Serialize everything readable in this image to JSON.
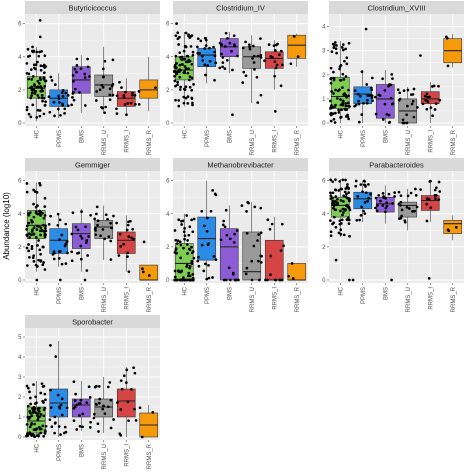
{
  "figure": {
    "ylabel": "Abundance (log10)",
    "groups": [
      "HC",
      "PPMS",
      "BMS",
      "RRMS_U",
      "RRMS_I",
      "RRMS_R"
    ],
    "colors": {
      "HC": "#7ccd52",
      "PPMS": "#2b8ce8",
      "BMS": "#8b5cd4",
      "RRMS_U": "#9a9a9a",
      "RRMS_I": "#d64545",
      "RRMS_R": "#f59a0a"
    },
    "panel_background": "#ebebeb",
    "strip_background": "#d9d9d9",
    "grid_color": "#ffffff"
  },
  "chart_data": [
    {
      "type": "box",
      "title": "Butyricicoccus",
      "ylim": [
        0,
        6.4
      ],
      "yticks": [
        0,
        2,
        4,
        6
      ],
      "categories": [
        "HC",
        "PPMS",
        "BMS",
        "RRMS_U",
        "RRMS_I",
        "RRMS_R"
      ],
      "boxes": [
        {
          "q1": 1.5,
          "median": 2.1,
          "q3": 2.8,
          "lower": 0.1,
          "upper": 4.6,
          "n": 85,
          "outliers": [
            6.2,
            5.2
          ]
        },
        {
          "q1": 1.0,
          "median": 1.5,
          "q3": 2.0,
          "lower": 0.3,
          "upper": 3.0,
          "n": 22,
          "outliers": []
        },
        {
          "q1": 1.8,
          "median": 2.6,
          "q3": 3.4,
          "lower": 0.6,
          "upper": 4.1,
          "n": 20,
          "outliers": []
        },
        {
          "q1": 1.6,
          "median": 2.3,
          "q3": 2.9,
          "lower": 0.6,
          "upper": 4.6,
          "n": 20,
          "outliers": []
        },
        {
          "q1": 1.0,
          "median": 1.5,
          "q3": 1.9,
          "lower": 0.4,
          "upper": 2.7,
          "n": 16,
          "outliers": []
        },
        {
          "q1": 1.5,
          "median": 2.0,
          "q3": 2.6,
          "lower": 0.7,
          "upper": 4.0,
          "n": 3,
          "outliers": []
        }
      ]
    },
    {
      "type": "box",
      "title": "Clostridium_IV",
      "ylim": [
        0,
        6.4
      ],
      "yticks": [
        0,
        2,
        4,
        6
      ],
      "categories": [
        "HC",
        "PPMS",
        "BMS",
        "RRMS_U",
        "RRMS_I",
        "RRMS_R"
      ],
      "boxes": [
        {
          "q1": 2.6,
          "median": 3.2,
          "q3": 4.0,
          "lower": 1.0,
          "upper": 5.5,
          "n": 85,
          "outliers": [
            6.0
          ]
        },
        {
          "q1": 3.4,
          "median": 4.1,
          "q3": 4.5,
          "lower": 2.4,
          "upper": 5.2,
          "n": 22,
          "outliers": []
        },
        {
          "q1": 4.0,
          "median": 4.6,
          "q3": 5.1,
          "lower": 3.0,
          "upper": 5.5,
          "n": 20,
          "outliers": [
            0.5
          ]
        },
        {
          "q1": 3.3,
          "median": 4.0,
          "q3": 4.6,
          "lower": 1.2,
          "upper": 5.3,
          "n": 20,
          "outliers": []
        },
        {
          "q1": 3.3,
          "median": 3.9,
          "q3": 4.3,
          "lower": 2.0,
          "upper": 5.0,
          "n": 16,
          "outliers": [
            0.7
          ]
        },
        {
          "q1": 3.9,
          "median": 4.7,
          "q3": 5.3,
          "lower": 3.4,
          "upper": 5.4,
          "n": 3,
          "outliers": []
        }
      ]
    },
    {
      "type": "box",
      "title": "Clostridium_XVIII",
      "ylim": [
        0,
        4.4
      ],
      "yticks": [
        0,
        1,
        2,
        3,
        4
      ],
      "categories": [
        "HC",
        "PPMS",
        "BMS",
        "RRMS_U",
        "RRMS_I",
        "RRMS_R"
      ],
      "boxes": [
        {
          "q1": 0.6,
          "median": 1.1,
          "q3": 1.9,
          "lower": 0.0,
          "upper": 3.4,
          "n": 85,
          "outliers": []
        },
        {
          "q1": 0.8,
          "median": 1.2,
          "q3": 1.5,
          "lower": 0.0,
          "upper": 2.2,
          "n": 22,
          "outliers": [
            3.9
          ]
        },
        {
          "q1": 0.2,
          "median": 1.0,
          "q3": 1.6,
          "lower": 0.0,
          "upper": 2.2,
          "n": 20,
          "outliers": []
        },
        {
          "q1": 0.0,
          "median": 0.5,
          "q3": 1.0,
          "lower": 0.0,
          "upper": 1.5,
          "n": 20,
          "outliers": []
        },
        {
          "q1": 0.8,
          "median": 1.0,
          "q3": 1.3,
          "lower": 0.0,
          "upper": 1.7,
          "n": 16,
          "outliers": [
            2.8
          ]
        },
        {
          "q1": 2.5,
          "median": 3.0,
          "q3": 3.5,
          "lower": 2.3,
          "upper": 3.7,
          "n": 3,
          "outliers": []
        }
      ]
    },
    {
      "type": "box",
      "title": "Gemmiger",
      "ylim": [
        0,
        6.4
      ],
      "yticks": [
        0,
        2,
        4,
        6
      ],
      "categories": [
        "HC",
        "PPMS",
        "BMS",
        "RRMS_U",
        "RRMS_I",
        "RRMS_R"
      ],
      "boxes": [
        {
          "q1": 2.5,
          "median": 3.3,
          "q3": 4.2,
          "lower": 0.5,
          "upper": 5.9,
          "n": 85,
          "outliers": [
            0.0
          ]
        },
        {
          "q1": 1.6,
          "median": 2.4,
          "q3": 3.1,
          "lower": 0.8,
          "upper": 4.0,
          "n": 22,
          "outliers": [
            0.0
          ]
        },
        {
          "q1": 1.9,
          "median": 2.8,
          "q3": 3.4,
          "lower": 0.5,
          "upper": 4.3,
          "n": 20,
          "outliers": [
            0.0
          ]
        },
        {
          "q1": 2.5,
          "median": 3.2,
          "q3": 3.6,
          "lower": 1.2,
          "upper": 4.5,
          "n": 20,
          "outliers": []
        },
        {
          "q1": 1.6,
          "median": 2.4,
          "q3": 2.9,
          "lower": 0.5,
          "upper": 3.9,
          "n": 16,
          "outliers": []
        },
        {
          "q1": 0.0,
          "median": 0.0,
          "q3": 0.9,
          "lower": 0.0,
          "upper": 0.9,
          "n": 3,
          "outliers": [
            2.3
          ]
        }
      ]
    },
    {
      "type": "box",
      "title": "Methanobrevibacter",
      "ylim": [
        0,
        6.4
      ],
      "yticks": [
        0,
        2,
        4,
        6
      ],
      "categories": [
        "HC",
        "PPMS",
        "BMS",
        "RRMS_U",
        "RRMS_I",
        "RRMS_R"
      ],
      "boxes": [
        {
          "q1": 0.0,
          "median": 1.0,
          "q3": 2.2,
          "lower": 0.0,
          "upper": 4.0,
          "n": 85,
          "outliers": []
        },
        {
          "q1": 1.2,
          "median": 2.5,
          "q3": 3.8,
          "lower": 0.0,
          "upper": 6.0,
          "n": 22,
          "outliers": []
        },
        {
          "q1": 0.0,
          "median": 2.0,
          "q3": 3.1,
          "lower": 0.0,
          "upper": 4.5,
          "n": 20,
          "outliers": []
        },
        {
          "q1": 0.0,
          "median": 0.5,
          "q3": 2.9,
          "lower": 0.0,
          "upper": 4.7,
          "n": 20,
          "outliers": []
        },
        {
          "q1": 0.0,
          "median": 0.0,
          "q3": 2.4,
          "lower": 0.0,
          "upper": 3.8,
          "n": 16,
          "outliers": []
        },
        {
          "q1": 0.0,
          "median": 0.0,
          "q3": 1.0,
          "lower": 0.0,
          "upper": 1.0,
          "n": 3,
          "outliers": []
        }
      ]
    },
    {
      "type": "box",
      "title": "Parabacteroides",
      "ylim": [
        0,
        6.4
      ],
      "yticks": [
        0,
        2,
        4,
        6
      ],
      "categories": [
        "HC",
        "PPMS",
        "BMS",
        "RRMS_U",
        "RRMS_I",
        "RRMS_R"
      ],
      "boxes": [
        {
          "q1": 3.8,
          "median": 4.5,
          "q3": 5.0,
          "lower": 2.6,
          "upper": 6.1,
          "n": 85,
          "outliers": [
            1.2,
            0.0
          ]
        },
        {
          "q1": 4.3,
          "median": 4.9,
          "q3": 5.3,
          "lower": 3.5,
          "upper": 6.0,
          "n": 22,
          "outliers": [
            0.0
          ]
        },
        {
          "q1": 4.1,
          "median": 4.6,
          "q3": 5.0,
          "lower": 3.4,
          "upper": 5.7,
          "n": 20,
          "outliers": [
            0.0
          ]
        },
        {
          "q1": 3.8,
          "median": 4.5,
          "q3": 4.7,
          "lower": 3.0,
          "upper": 5.5,
          "n": 20,
          "outliers": []
        },
        {
          "q1": 4.2,
          "median": 4.8,
          "q3": 5.1,
          "lower": 3.5,
          "upper": 6.0,
          "n": 16,
          "outliers": [
            0.1
          ]
        },
        {
          "q1": 2.8,
          "median": 3.4,
          "q3": 3.6,
          "lower": 2.4,
          "upper": 3.9,
          "n": 3,
          "outliers": []
        }
      ]
    },
    {
      "type": "box",
      "title": "Sporobacter",
      "ylim": [
        0,
        5.3
      ],
      "yticks": [
        0,
        1,
        2,
        3,
        4,
        5
      ],
      "categories": [
        "HC",
        "PPMS",
        "BMS",
        "RRMS_U",
        "RRMS_I",
        "RRMS_R"
      ],
      "boxes": [
        {
          "q1": 0.2,
          "median": 0.8,
          "q3": 1.5,
          "lower": 0.0,
          "upper": 2.8,
          "n": 85,
          "outliers": []
        },
        {
          "q1": 1.0,
          "median": 1.7,
          "q3": 2.4,
          "lower": 0.0,
          "upper": 4.8,
          "n": 22,
          "outliers": []
        },
        {
          "q1": 1.0,
          "median": 1.6,
          "q3": 1.9,
          "lower": 0.3,
          "upper": 2.8,
          "n": 20,
          "outliers": []
        },
        {
          "q1": 1.0,
          "median": 1.5,
          "q3": 1.9,
          "lower": 0.2,
          "upper": 3.0,
          "n": 20,
          "outliers": []
        },
        {
          "q1": 1.0,
          "median": 1.8,
          "q3": 2.4,
          "lower": 0.0,
          "upper": 3.5,
          "n": 16,
          "outliers": []
        },
        {
          "q1": 0.0,
          "median": 0.6,
          "q3": 1.2,
          "lower": 0.0,
          "upper": 1.6,
          "n": 3,
          "outliers": []
        }
      ]
    }
  ]
}
